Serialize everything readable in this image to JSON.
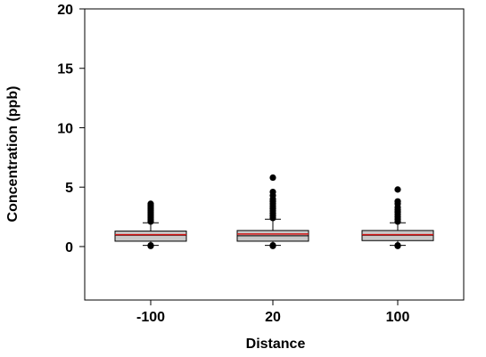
{
  "chart_data": {
    "type": "box",
    "xlabel": "Distance",
    "ylabel": "Concentration (ppb)",
    "ylim": [
      -4.5,
      20
    ],
    "yticks": [
      0,
      5,
      10,
      15,
      20
    ],
    "categories": [
      "-100",
      "20",
      "100"
    ],
    "grid": false,
    "series": [
      {
        "category": "-100",
        "whisker_low": 0.1,
        "q1": 0.45,
        "median": 0.95,
        "mean": 1.0,
        "q3": 1.3,
        "whisker_high": 2.0,
        "outliers": [
          0.05,
          0.1,
          2.1,
          2.25,
          2.4,
          2.55,
          2.7,
          2.85,
          3.0,
          3.15,
          3.3,
          3.45,
          3.6
        ]
      },
      {
        "category": "20",
        "whisker_low": 0.1,
        "q1": 0.45,
        "median": 0.9,
        "mean": 1.05,
        "q3": 1.35,
        "whisker_high": 2.3,
        "outliers": [
          0.05,
          0.1,
          2.4,
          2.6,
          2.8,
          3.0,
          3.2,
          3.4,
          3.6,
          3.8,
          4.0,
          4.3,
          4.6,
          5.8
        ]
      },
      {
        "category": "100",
        "whisker_low": 0.1,
        "q1": 0.5,
        "median": 0.95,
        "mean": 1.0,
        "q3": 1.35,
        "whisker_high": 2.0,
        "outliers": [
          0.05,
          0.1,
          2.1,
          2.3,
          2.5,
          2.7,
          2.9,
          3.1,
          3.3,
          3.6,
          3.8,
          4.8
        ]
      }
    ],
    "colors": {
      "box_fill": "#c8c8c8",
      "box_stroke": "#000000",
      "median": "#000000",
      "mean": "#d01010",
      "outlier": "#000000"
    }
  }
}
